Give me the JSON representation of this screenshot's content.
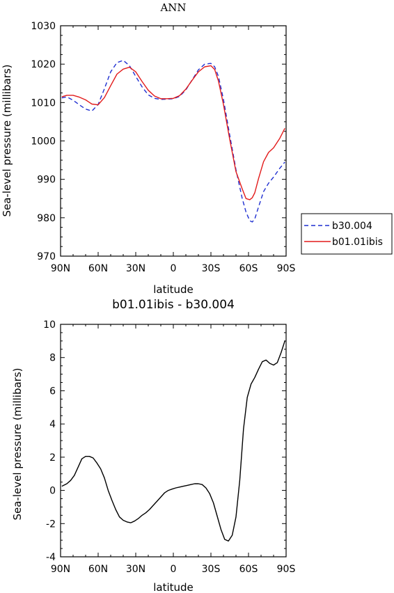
{
  "chart_data": [
    {
      "type": "line",
      "title": "ANN",
      "xlabel": "latitude",
      "ylabel": "Sea-level pressure (millibars)",
      "xlim": [
        90,
        -90
      ],
      "ylim": [
        970,
        1030
      ],
      "x_ticks": [
        90,
        60,
        30,
        0,
        -30,
        -60,
        -90
      ],
      "x_tick_labels": [
        "90N",
        "60N",
        "30N",
        "0",
        "30S",
        "60S",
        "90S"
      ],
      "y_ticks": [
        970,
        980,
        990,
        1000,
        1010,
        1020,
        1030
      ],
      "y_tick_labels": [
        "970",
        "980",
        "990",
        "1000",
        "1010",
        "1020",
        "1030"
      ],
      "legend_position": "right",
      "series": [
        {
          "name": "b30.004",
          "color": "#1f2fd1",
          "dash": "dashed",
          "x": [
            89,
            85,
            80,
            75,
            70,
            65,
            60,
            55,
            50,
            45,
            40,
            35,
            30,
            25,
            20,
            15,
            10,
            5,
            0,
            -5,
            -10,
            -15,
            -20,
            -25,
            -30,
            -33,
            -36,
            -40,
            -45,
            -50,
            -55,
            -58,
            -61,
            -63,
            -65,
            -68,
            -72,
            -76,
            -80,
            -85,
            -89
          ],
          "y": [
            1011.2,
            1011.5,
            1010.6,
            1009.4,
            1008.3,
            1007.8,
            1009.5,
            1013.6,
            1018.0,
            1020.4,
            1021.0,
            1019.6,
            1016.8,
            1014.1,
            1012.0,
            1011.1,
            1010.8,
            1010.9,
            1011.0,
            1011.6,
            1013.3,
            1015.9,
            1018.5,
            1020.0,
            1020.2,
            1019.3,
            1016.8,
            1010.8,
            1001.5,
            992.5,
            985.0,
            981.5,
            979.2,
            978.9,
            979.7,
            982.8,
            986.8,
            989.0,
            990.6,
            992.9,
            994.5
          ]
        },
        {
          "name": "b01.01ibis",
          "color": "#e21a1a",
          "dash": "solid",
          "x": [
            89,
            85,
            80,
            75,
            70,
            65,
            60,
            55,
            50,
            45,
            40,
            35,
            30,
            25,
            20,
            15,
            10,
            5,
            0,
            -5,
            -10,
            -15,
            -20,
            -25,
            -30,
            -33,
            -36,
            -40,
            -45,
            -50,
            -55,
            -58,
            -61,
            -63,
            -65,
            -68,
            -72,
            -76,
            -80,
            -85,
            -89
          ],
          "y": [
            1011.5,
            1011.9,
            1011.9,
            1011.4,
            1010.7,
            1009.6,
            1009.4,
            1011.3,
            1014.4,
            1017.4,
            1018.7,
            1019.2,
            1018.0,
            1015.5,
            1013.2,
            1011.7,
            1011.0,
            1011.0,
            1011.1,
            1011.8,
            1013.5,
            1015.8,
            1018.0,
            1019.3,
            1019.6,
            1018.6,
            1015.6,
            1009.5,
            1000.4,
            992.0,
            987.5,
            985.0,
            984.7,
            985.2,
            986.5,
            990.2,
            994.6,
            997.0,
            998.2,
            1000.7,
            1003.3
          ]
        }
      ]
    },
    {
      "type": "line",
      "title": "b01.01ibis - b30.004",
      "xlabel": "latitude",
      "ylabel": "Sea-level pressure (millibars)",
      "xlim": [
        90,
        -90
      ],
      "ylim": [
        -4,
        10
      ],
      "x_ticks": [
        90,
        60,
        30,
        0,
        -30,
        -60,
        -90
      ],
      "x_tick_labels": [
        "90N",
        "60N",
        "30N",
        "0",
        "30S",
        "60S",
        "90S"
      ],
      "y_ticks": [
        -4,
        -2,
        0,
        2,
        4,
        6,
        8,
        10
      ],
      "y_tick_labels": [
        "-4",
        "-2",
        "0",
        "2",
        "4",
        "6",
        "8",
        "10"
      ],
      "series": [
        {
          "color": "#000000",
          "dash": "solid",
          "x": [
            89,
            85,
            82,
            79,
            76,
            73,
            70,
            67,
            64,
            61,
            58,
            55,
            52,
            49,
            46,
            43,
            40,
            37,
            34,
            31,
            28,
            25,
            22,
            19,
            16,
            13,
            10,
            7,
            4,
            1,
            -2,
            -5,
            -8,
            -11,
            -14,
            -17,
            -20,
            -23,
            -26,
            -29,
            -32,
            -35,
            -38,
            -41,
            -44,
            -47,
            -50,
            -53,
            -56,
            -59,
            -62,
            -65,
            -68,
            -71,
            -74,
            -77,
            -80,
            -83,
            -86,
            -89
          ],
          "y": [
            0.25,
            0.4,
            0.6,
            0.9,
            1.4,
            1.9,
            2.05,
            2.05,
            1.95,
            1.65,
            1.3,
            0.75,
            0.0,
            -0.6,
            -1.15,
            -1.6,
            -1.8,
            -1.9,
            -1.95,
            -1.85,
            -1.7,
            -1.5,
            -1.35,
            -1.15,
            -0.9,
            -0.65,
            -0.4,
            -0.15,
            0.0,
            0.08,
            0.15,
            0.2,
            0.25,
            0.3,
            0.35,
            0.4,
            0.4,
            0.35,
            0.15,
            -0.2,
            -0.75,
            -1.55,
            -2.35,
            -2.95,
            -3.05,
            -2.7,
            -1.6,
            0.6,
            3.7,
            5.6,
            6.4,
            6.8,
            7.3,
            7.75,
            7.85,
            7.65,
            7.55,
            7.7,
            8.3,
            9.0
          ]
        }
      ]
    }
  ]
}
